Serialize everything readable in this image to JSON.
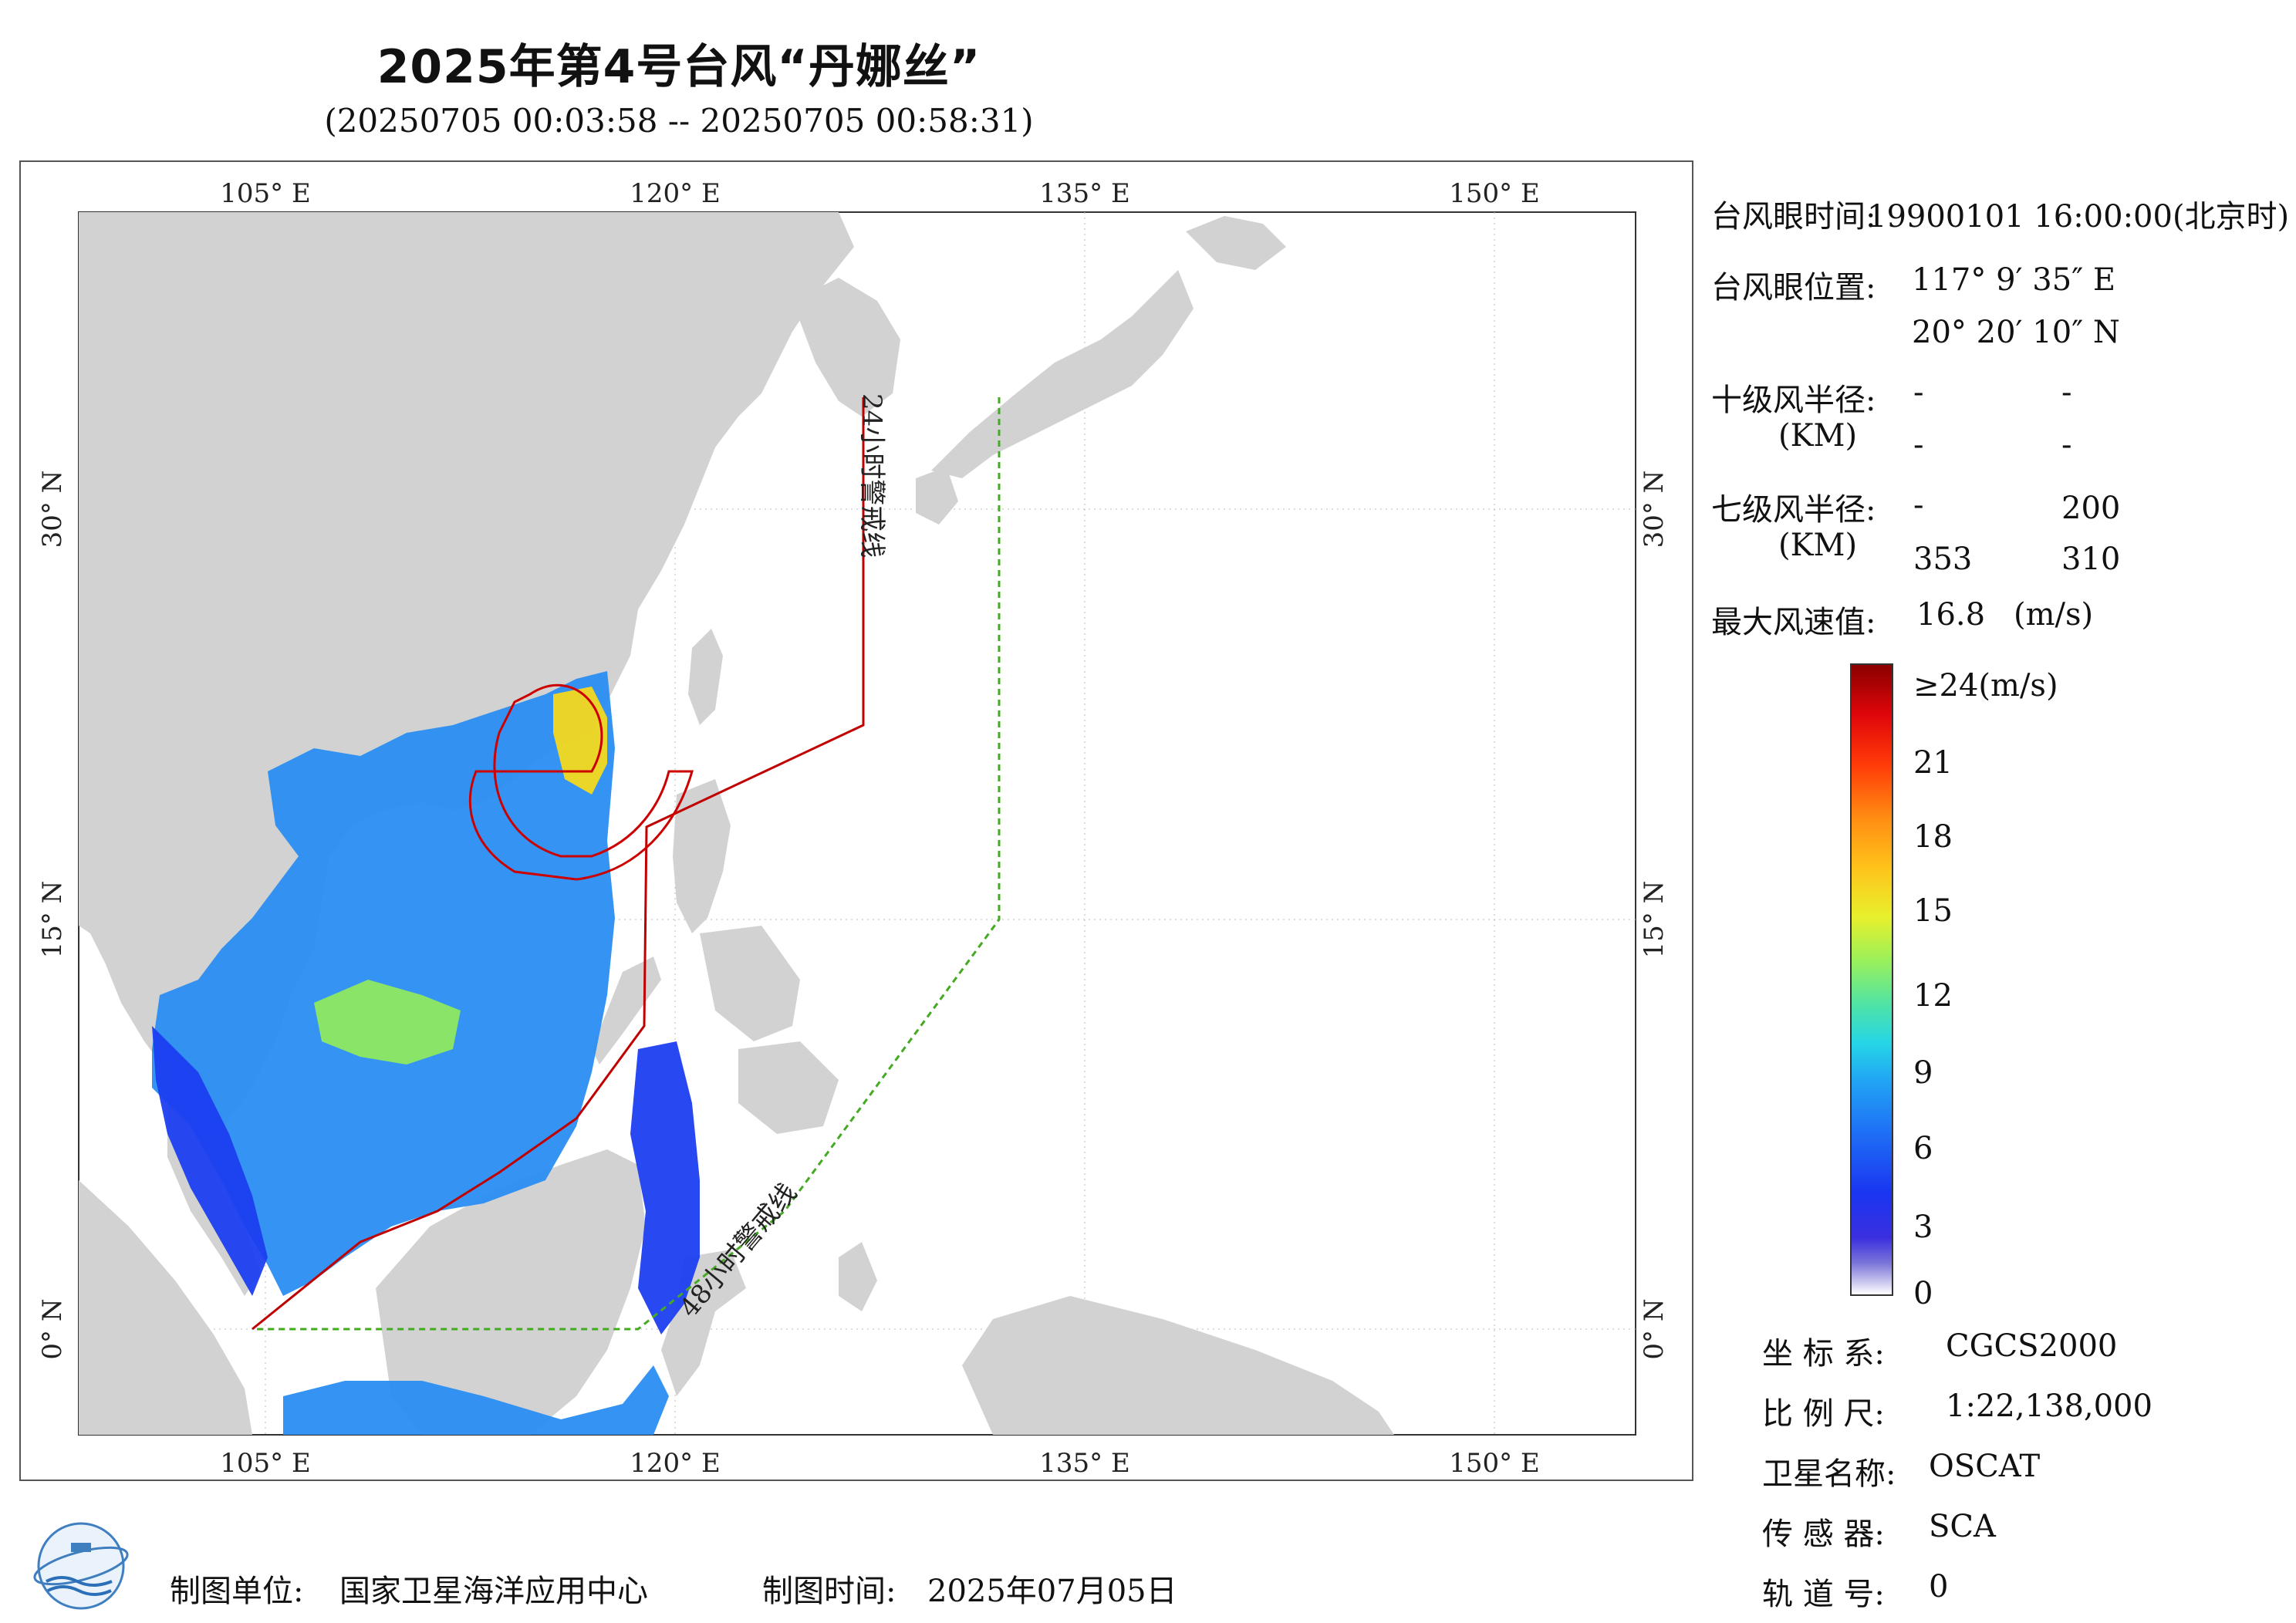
{
  "header": {
    "title": "2025年第4号台风“丹娜丝”",
    "subtitle": "(20250705 00:03:58 -- 20250705 00:58:31)"
  },
  "map": {
    "top_ticks": [
      "105° E",
      "120° E",
      "135° E",
      "150° E"
    ],
    "bottom_ticks": [
      "105° E",
      "120° E",
      "135° E",
      "150° E"
    ],
    "left_ticks": [
      "30° N",
      "15° N",
      "0° N"
    ],
    "right_ticks": [
      "30° N",
      "15° N",
      "0° N"
    ],
    "line_24h_label": "24小时警戒线",
    "line_48h_label": "48小时警戒线",
    "colors": {
      "land": "#d2d2d2",
      "sea": "#ffffff",
      "warning_24h": "#c00000",
      "warning_48h": "#44aa22",
      "wind_radius": "#cc0000"
    }
  },
  "info": {
    "eye_time_label": "台风眼时间:",
    "eye_time_value": "19900101 16:00:00(北京时)",
    "eye_pos_label": "台风眼位置:",
    "eye_lon": "117° 9′ 35″ E",
    "eye_lat": "20° 20′ 10″ N",
    "r10_label": "十级风半径:",
    "r10_unit": "(KM)",
    "r10_values": [
      "-",
      "-",
      "-",
      "-"
    ],
    "r7_label": "七级风半径:",
    "r7_unit": "(KM)",
    "r7_values": [
      "-",
      "200",
      "353",
      "310"
    ],
    "max_wind_label": "最大风速值:",
    "max_wind_value": "16.8",
    "max_wind_unit": "(m/s)"
  },
  "colorbar": {
    "labels": [
      "≥24(m/s)",
      "21",
      "18",
      "15",
      "12",
      "9",
      "6",
      "3",
      "0"
    ]
  },
  "meta": {
    "coord_label": "坐 标 系:",
    "coord_value": "CGCS2000",
    "scale_label": "比 例 尺:",
    "scale_value": "1:22,138,000",
    "sat_label": "卫星名称:",
    "sat_value": "OSCAT",
    "sensor_label": "传 感 器:",
    "sensor_value": "SCA",
    "orbit_label": "轨 道 号:",
    "orbit_value": "0"
  },
  "footer": {
    "unit_label": "制图单位:",
    "unit_value": "国家卫星海洋应用中心",
    "time_label": "制图时间:",
    "time_value": "2025年07月05日"
  }
}
